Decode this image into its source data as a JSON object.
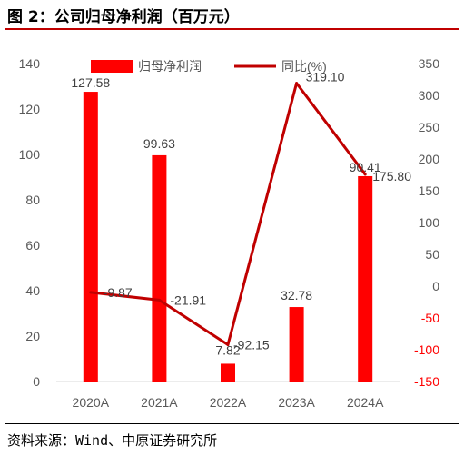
{
  "figure": {
    "title": "图 2：公司归母净利润（百万元）",
    "source": "资料来源：Wind、中原证券研究所"
  },
  "chart_data": {
    "type": "bar",
    "categories": [
      "2020A",
      "2021A",
      "2022A",
      "2023A",
      "2024A"
    ],
    "series": [
      {
        "name": "归母净利润",
        "type": "bar",
        "axis": "left",
        "values": [
          127.58,
          99.63,
          7.82,
          32.78,
          90.41
        ],
        "labels": [
          "127.58",
          "99.63",
          "7.82",
          "32.78",
          "90.41"
        ]
      },
      {
        "name": "同比(%)",
        "type": "line",
        "axis": "right",
        "values": [
          -9.87,
          -21.91,
          -92.15,
          319.1,
          175.8
        ],
        "labels": [
          "-9.87",
          "-21.91",
          "-92.15",
          "319.10",
          "175.80"
        ]
      }
    ],
    "y_left": {
      "min": 0,
      "max": 140,
      "ticks": [
        "0",
        "20",
        "40",
        "60",
        "80",
        "100",
        "120",
        "140"
      ]
    },
    "y_right": {
      "min": -150,
      "max": 350,
      "ticks": [
        "-150",
        "-100",
        "-50",
        "0",
        "50",
        "100",
        "150",
        "200",
        "250",
        "300",
        "350"
      ],
      "negative_color": "#ff0000"
    },
    "grid": false,
    "legend_position": "top",
    "colors": {
      "bar": "#ff0000",
      "line": "#c00000",
      "title_rule": "#c00000"
    }
  }
}
